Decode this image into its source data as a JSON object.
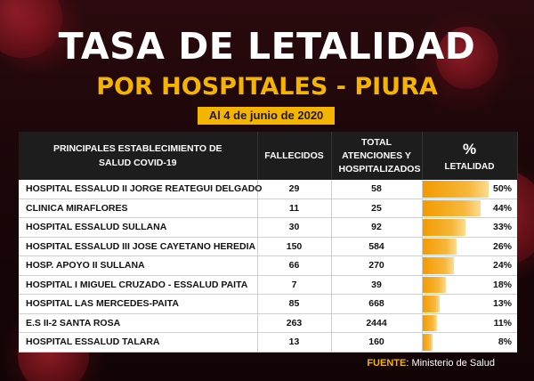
{
  "header": {
    "title": "TASA DE LETALIDAD",
    "subtitle": "POR HOSPITALES - PIURA",
    "date": "Al 4 de junio de 2020"
  },
  "table": {
    "columns": {
      "establishment": "PRINCIPALES ESTABLECIMIENTO DE SALUD COVID-19",
      "deaths": "FALLECIDOS",
      "total": "TOTAL ATENCIONES Y HOSPITALIZADOS",
      "pct_symbol": "%",
      "pct_label": "LETALIDAD"
    },
    "rows": [
      {
        "name": "HOSPITAL ESSALUD II JORGE REATEGUI DELGADO",
        "deaths": "29",
        "total": "58",
        "pct": "50%"
      },
      {
        "name": "CLINICA MIRAFLORES",
        "deaths": "11",
        "total": "25",
        "pct": "44%"
      },
      {
        "name": "HOSPITAL ESSALUD SULLANA",
        "deaths": "30",
        "total": "92",
        "pct": "33%"
      },
      {
        "name": "HOSPITAL ESSALUD III JOSE CAYETANO HEREDIA",
        "deaths": "150",
        "total": "584",
        "pct": "26%"
      },
      {
        "name": "HOSP. APOYO II SULLANA",
        "deaths": "66",
        "total": "270",
        "pct": "24%"
      },
      {
        "name": "HOSPITAL I MIGUEL CRUZADO  - ESSALUD PAITA",
        "deaths": "7",
        "total": "39",
        "pct": "18%"
      },
      {
        "name": "HOSPITAL LAS MERCEDES-PAITA",
        "deaths": "85",
        "total": "668",
        "pct": "13%"
      },
      {
        "name": "E.S II-2 SANTA ROSA",
        "deaths": "263",
        "total": "2444",
        "pct": "11%"
      },
      {
        "name": "HOSPITAL ESSALUD TALARA",
        "deaths": "13",
        "total": "160",
        "pct": "8%"
      }
    ]
  },
  "source": {
    "label": "FUENTE",
    "text": ": Ministerio de Salud"
  },
  "colors": {
    "accent": "#f5b400",
    "bar": "#f39a00",
    "background": "#1a0608",
    "header_bg": "#1d1d1d"
  },
  "chart_data": {
    "type": "table",
    "categories": [
      "HOSPITAL ESSALUD II JORGE REATEGUI DELGADO",
      "CLINICA MIRAFLORES",
      "HOSPITAL ESSALUD SULLANA",
      "HOSPITAL ESSALUD III JOSE CAYETANO HEREDIA",
      "HOSP. APOYO II SULLANA",
      "HOSPITAL I MIGUEL CRUZADO  - ESSALUD PAITA",
      "HOSPITAL LAS MERCEDES-PAITA",
      "E.S II-2 SANTA ROSA",
      "HOSPITAL ESSALUD TALARA"
    ],
    "series": [
      {
        "name": "FALLECIDOS",
        "values": [
          29,
          11,
          30,
          150,
          66,
          7,
          85,
          263,
          13
        ]
      },
      {
        "name": "TOTAL ATENCIONES Y HOSPITALIZADOS",
        "values": [
          58,
          25,
          92,
          584,
          270,
          39,
          668,
          2444,
          160
        ]
      },
      {
        "name": "LETALIDAD",
        "values": [
          50,
          44,
          33,
          26,
          24,
          18,
          13,
          11,
          8
        ]
      }
    ],
    "title": "TASA DE LETALIDAD",
    "subtitle": "POR HOSPITALES - PIURA",
    "ylim": [
      0,
      50
    ]
  }
}
